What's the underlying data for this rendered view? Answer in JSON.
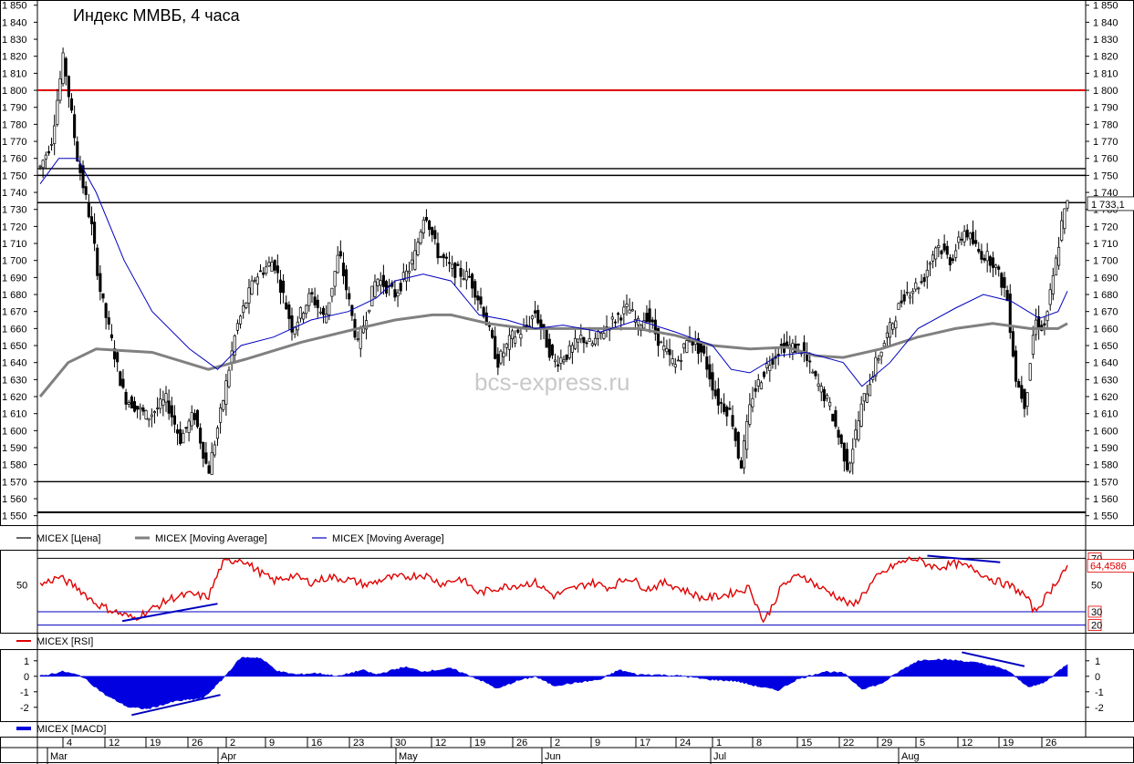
{
  "chart_data": {
    "type": "candlestick",
    "title": "Индекс ММВБ, 4 часа",
    "watermark": "bcs-express.ru",
    "price_panel": {
      "ylim": [
        1545,
        1852
      ],
      "yticks": [
        1550,
        1560,
        1570,
        1580,
        1590,
        1600,
        1610,
        1620,
        1630,
        1640,
        1650,
        1660,
        1670,
        1680,
        1690,
        1700,
        1710,
        1720,
        1730,
        1740,
        1750,
        1760,
        1770,
        1780,
        1790,
        1800,
        1810,
        1820,
        1830,
        1840,
        1850
      ],
      "last_value_label": "1 733,1",
      "last_value": 1733.1,
      "horizontal_levels": [
        {
          "value": 1800,
          "color": "#e00000"
        },
        {
          "value": 1754,
          "color": "#000000"
        },
        {
          "value": 1750,
          "color": "#000000"
        },
        {
          "value": 1734,
          "color": "#000000"
        },
        {
          "value": 1570,
          "color": "#000000"
        },
        {
          "value": 1552,
          "color": "#000000"
        }
      ],
      "price_path": [
        [
          0,
          1755
        ],
        [
          12,
          1770
        ],
        [
          25,
          1820
        ],
        [
          40,
          1760
        ],
        [
          55,
          1720
        ],
        [
          65,
          1680
        ],
        [
          90,
          1620
        ],
        [
          115,
          1608
        ],
        [
          135,
          1618
        ],
        [
          150,
          1595
        ],
        [
          165,
          1610
        ],
        [
          180,
          1575
        ],
        [
          195,
          1615
        ],
        [
          210,
          1660
        ],
        [
          230,
          1690
        ],
        [
          250,
          1700
        ],
        [
          270,
          1660
        ],
        [
          290,
          1680
        ],
        [
          305,
          1665
        ],
        [
          320,
          1705
        ],
        [
          340,
          1650
        ],
        [
          360,
          1690
        ],
        [
          380,
          1680
        ],
        [
          400,
          1700
        ],
        [
          412,
          1730
        ],
        [
          425,
          1705
        ],
        [
          440,
          1695
        ],
        [
          460,
          1690
        ],
        [
          475,
          1670
        ],
        [
          490,
          1640
        ],
        [
          505,
          1655
        ],
        [
          520,
          1660
        ],
        [
          530,
          1670
        ],
        [
          540,
          1655
        ],
        [
          550,
          1640
        ],
        [
          565,
          1645
        ],
        [
          580,
          1655
        ],
        [
          590,
          1650
        ],
        [
          605,
          1660
        ],
        [
          620,
          1668
        ],
        [
          630,
          1672
        ],
        [
          640,
          1662
        ],
        [
          650,
          1668
        ],
        [
          665,
          1650
        ],
        [
          680,
          1638
        ],
        [
          695,
          1655
        ],
        [
          710,
          1645
        ],
        [
          725,
          1618
        ],
        [
          740,
          1610
        ],
        [
          750,
          1578
        ],
        [
          762,
          1620
        ],
        [
          780,
          1640
        ],
        [
          795,
          1650
        ],
        [
          815,
          1648
        ],
        [
          830,
          1630
        ],
        [
          845,
          1615
        ],
        [
          865,
          1578
        ],
        [
          880,
          1615
        ],
        [
          895,
          1640
        ],
        [
          910,
          1660
        ],
        [
          925,
          1680
        ],
        [
          945,
          1688
        ],
        [
          960,
          1710
        ],
        [
          975,
          1700
        ],
        [
          990,
          1718
        ],
        [
          1005,
          1705
        ],
        [
          1020,
          1700
        ],
        [
          1035,
          1680
        ],
        [
          1045,
          1630
        ],
        [
          1055,
          1615
        ],
        [
          1065,
          1665
        ],
        [
          1075,
          1660
        ],
        [
          1085,
          1690
        ],
        [
          1095,
          1725
        ],
        [
          1100,
          1733
        ]
      ],
      "ma_slow": [
        [
          0,
          1620
        ],
        [
          30,
          1640
        ],
        [
          60,
          1648
        ],
        [
          120,
          1646
        ],
        [
          180,
          1636
        ],
        [
          220,
          1642
        ],
        [
          280,
          1652
        ],
        [
          340,
          1660
        ],
        [
          380,
          1665
        ],
        [
          420,
          1668
        ],
        [
          440,
          1668
        ],
        [
          480,
          1663
        ],
        [
          520,
          1660
        ],
        [
          560,
          1660
        ],
        [
          600,
          1660
        ],
        [
          640,
          1660
        ],
        [
          680,
          1656
        ],
        [
          720,
          1650
        ],
        [
          760,
          1648
        ],
        [
          800,
          1649
        ],
        [
          830,
          1644
        ],
        [
          860,
          1643
        ],
        [
          900,
          1648
        ],
        [
          940,
          1655
        ],
        [
          980,
          1660
        ],
        [
          1020,
          1663
        ],
        [
          1060,
          1660
        ],
        [
          1090,
          1660
        ],
        [
          1100,
          1663
        ]
      ],
      "ma_fast": [
        [
          0,
          1745
        ],
        [
          20,
          1760
        ],
        [
          40,
          1760
        ],
        [
          60,
          1740
        ],
        [
          90,
          1700
        ],
        [
          120,
          1670
        ],
        [
          160,
          1648
        ],
        [
          190,
          1636
        ],
        [
          215,
          1650
        ],
        [
          250,
          1655
        ],
        [
          290,
          1665
        ],
        [
          330,
          1670
        ],
        [
          360,
          1678
        ],
        [
          380,
          1688
        ],
        [
          410,
          1692
        ],
        [
          440,
          1688
        ],
        [
          470,
          1668
        ],
        [
          500,
          1665
        ],
        [
          530,
          1660
        ],
        [
          560,
          1662
        ],
        [
          600,
          1658
        ],
        [
          640,
          1665
        ],
        [
          680,
          1658
        ],
        [
          720,
          1650
        ],
        [
          740,
          1636
        ],
        [
          760,
          1634
        ],
        [
          790,
          1644
        ],
        [
          820,
          1646
        ],
        [
          860,
          1640
        ],
        [
          880,
          1626
        ],
        [
          910,
          1640
        ],
        [
          940,
          1660
        ],
        [
          980,
          1672
        ],
        [
          1010,
          1680
        ],
        [
          1040,
          1676
        ],
        [
          1070,
          1666
        ],
        [
          1090,
          1670
        ],
        [
          1100,
          1682
        ]
      ]
    },
    "rsi_panel": {
      "ylim": [
        17,
        73
      ],
      "yticks_left": [
        50
      ],
      "yticks_right": [
        {
          "v": 70,
          "label": "70"
        },
        {
          "v": 50,
          "label": "50"
        },
        {
          "v": 30,
          "label": "30"
        },
        {
          "v": 20,
          "label": "20"
        }
      ],
      "levels": [
        70,
        30,
        20
      ],
      "last_value_label": "64,4586",
      "last_value": 64.4586,
      "path": [
        [
          0,
          50
        ],
        [
          20,
          56
        ],
        [
          40,
          48
        ],
        [
          60,
          36
        ],
        [
          80,
          30
        ],
        [
          100,
          25
        ],
        [
          120,
          32
        ],
        [
          140,
          40
        ],
        [
          160,
          43
        ],
        [
          180,
          41
        ],
        [
          195,
          66
        ],
        [
          215,
          70
        ],
        [
          230,
          62
        ],
        [
          250,
          53
        ],
        [
          270,
          57
        ],
        [
          290,
          52
        ],
        [
          310,
          56
        ],
        [
          330,
          54
        ],
        [
          350,
          50
        ],
        [
          370,
          55
        ],
        [
          390,
          56
        ],
        [
          410,
          58
        ],
        [
          430,
          51
        ],
        [
          450,
          55
        ],
        [
          470,
          44
        ],
        [
          490,
          48
        ],
        [
          510,
          50
        ],
        [
          530,
          52
        ],
        [
          550,
          42
        ],
        [
          570,
          47
        ],
        [
          590,
          52
        ],
        [
          610,
          48
        ],
        [
          630,
          56
        ],
        [
          650,
          47
        ],
        [
          670,
          52
        ],
        [
          690,
          46
        ],
        [
          710,
          40
        ],
        [
          730,
          42
        ],
        [
          760,
          48
        ],
        [
          775,
          22
        ],
        [
          795,
          50
        ],
        [
          815,
          58
        ],
        [
          835,
          48
        ],
        [
          850,
          43
        ],
        [
          870,
          34
        ],
        [
          895,
          55
        ],
        [
          915,
          65
        ],
        [
          935,
          70
        ],
        [
          960,
          63
        ],
        [
          980,
          66
        ],
        [
          1000,
          62
        ],
        [
          1020,
          54
        ],
        [
          1040,
          49
        ],
        [
          1055,
          42
        ],
        [
          1065,
          30
        ],
        [
          1080,
          44
        ],
        [
          1095,
          60
        ],
        [
          1100,
          63
        ]
      ],
      "trendlines": [
        {
          "from": [
            88,
            23
          ],
          "to": [
            190,
            36
          ]
        },
        {
          "from": [
            950,
            72
          ],
          "to": [
            1028,
            67
          ]
        }
      ]
    },
    "macd_panel": {
      "ylim": [
        -2.6,
        1.4
      ],
      "yticks_left": [
        {
          "v": 1,
          "label": "1"
        },
        {
          "v": 0,
          "label": "0"
        },
        {
          "v": -1,
          "label": "-1"
        },
        {
          "v": -2,
          "label": "-2"
        }
      ],
      "yticks_right": [
        {
          "v": 1,
          "label": "1"
        },
        {
          "v": 0,
          "label": "0"
        },
        {
          "v": -1,
          "label": "-1"
        },
        {
          "v": -2,
          "label": "-2"
        }
      ],
      "path": [
        [
          0,
          0
        ],
        [
          25,
          0.3
        ],
        [
          45,
          0
        ],
        [
          70,
          -1.2
        ],
        [
          95,
          -2
        ],
        [
          115,
          -2.1
        ],
        [
          145,
          -1.6
        ],
        [
          175,
          -1.4
        ],
        [
          195,
          -0.2
        ],
        [
          215,
          1.2
        ],
        [
          235,
          1.2
        ],
        [
          255,
          0.3
        ],
        [
          275,
          0.1
        ],
        [
          295,
          0.2
        ],
        [
          320,
          0
        ],
        [
          345,
          0.4
        ],
        [
          360,
          0.1
        ],
        [
          390,
          0.6
        ],
        [
          410,
          0.3
        ],
        [
          440,
          0.5
        ],
        [
          470,
          -0.2
        ],
        [
          490,
          -0.8
        ],
        [
          510,
          -0.3
        ],
        [
          530,
          0
        ],
        [
          550,
          -0.6
        ],
        [
          575,
          -0.4
        ],
        [
          600,
          -0.2
        ],
        [
          620,
          0.4
        ],
        [
          640,
          0.1
        ],
        [
          660,
          0.1
        ],
        [
          690,
          0
        ],
        [
          715,
          -0.2
        ],
        [
          745,
          -0.3
        ],
        [
          765,
          -0.6
        ],
        [
          790,
          -0.9
        ],
        [
          810,
          -0.2
        ],
        [
          840,
          0.3
        ],
        [
          860,
          0.2
        ],
        [
          880,
          -0.8
        ],
        [
          900,
          -0.5
        ],
        [
          920,
          0.3
        ],
        [
          940,
          1.0
        ],
        [
          960,
          1.1
        ],
        [
          985,
          1.0
        ],
        [
          1010,
          0.8
        ],
        [
          1035,
          0.4
        ],
        [
          1050,
          -0.3
        ],
        [
          1060,
          -0.7
        ],
        [
          1075,
          -0.4
        ],
        [
          1090,
          0.3
        ],
        [
          1100,
          0.8
        ]
      ],
      "trendlines": [
        {
          "from": [
            98,
            -2.5
          ],
          "to": [
            193,
            -1.2
          ]
        },
        {
          "from": [
            987,
            1.55
          ],
          "to": [
            1054,
            0.65
          ]
        }
      ]
    },
    "x_axis": {
      "day_labels": [
        "4",
        "12",
        "19",
        "26",
        "2",
        "9",
        "16",
        "23",
        "30",
        "12",
        "19",
        "26",
        "2",
        "9",
        "17",
        "24",
        "1",
        "8",
        "15",
        "22",
        "29",
        "5",
        "12",
        "19",
        "26"
      ],
      "month_labels": [
        "Mar",
        "Apr",
        "May",
        "Jun",
        "Jul",
        "Aug"
      ]
    },
    "legend_price": [
      {
        "name": "MICEX [Цена]",
        "color": "#000000"
      },
      {
        "name": "MICEX [Moving Average]",
        "color": "#808080"
      },
      {
        "name": "MICEX [Moving Average]",
        "color": "#0000c0"
      }
    ],
    "legend_rsi": [
      {
        "name": "MICEX [RSI]",
        "color": "#e00000"
      }
    ],
    "legend_macd": [
      {
        "name": "MICEX [MACD]",
        "color": "#0000e0"
      }
    ]
  }
}
